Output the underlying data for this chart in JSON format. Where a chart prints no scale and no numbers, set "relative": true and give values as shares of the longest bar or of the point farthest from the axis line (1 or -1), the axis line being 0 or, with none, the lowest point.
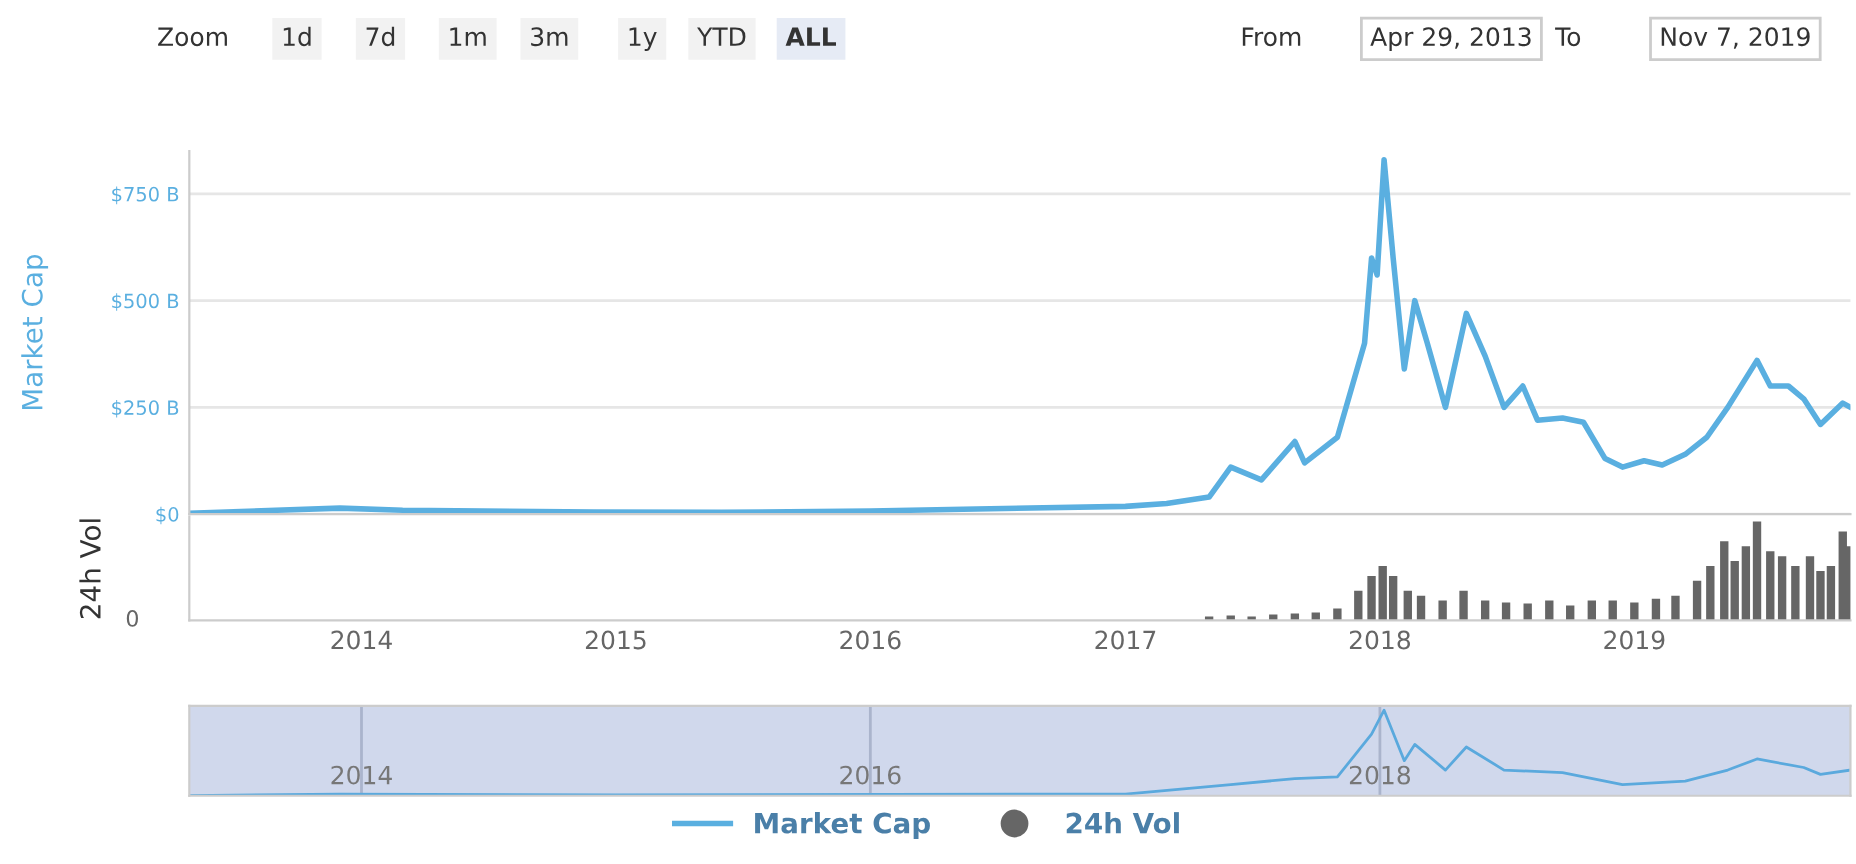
{
  "chart_data": [
    {
      "type": "line",
      "ylabel": "Market Cap",
      "annotations": [
        "Zoom",
        "1d",
        "7d",
        "1m",
        "3m",
        "1y",
        "YTD",
        "ALL",
        "From",
        "Apr 29, 2013",
        "To",
        "Nov 7, 2019"
      ],
      "x": [
        "2013-04-29",
        "2013-12-01",
        "2014-03-01",
        "2014-12-01",
        "2015-06-01",
        "2016-01-01",
        "2016-06-01",
        "2017-01-01",
        "2017-03-01",
        "2017-05-01",
        "2017-06-01",
        "2017-07-15",
        "2017-09-01",
        "2017-09-15",
        "2017-11-01",
        "2017-12-10",
        "2017-12-20",
        "2017-12-28",
        "2018-01-07",
        "2018-01-20",
        "2018-02-05",
        "2018-02-20",
        "2018-03-10",
        "2018-04-05",
        "2018-05-05",
        "2018-06-01",
        "2018-06-28",
        "2018-07-25",
        "2018-08-15",
        "2018-09-20",
        "2018-10-20",
        "2018-11-20",
        "2018-12-15",
        "2019-01-15",
        "2019-02-10",
        "2019-03-15",
        "2019-04-15",
        "2019-05-15",
        "2019-06-26",
        "2019-07-15",
        "2019-08-10",
        "2019-09-01",
        "2019-09-25",
        "2019-10-27",
        "2019-11-07"
      ],
      "series": [
        {
          "name": "Market Cap",
          "color": "#5aafe0",
          "values": [
            2,
            14,
            9,
            5,
            4,
            7,
            12,
            18,
            25,
            40,
            110,
            80,
            170,
            120,
            180,
            400,
            600,
            560,
            830,
            600,
            340,
            500,
            400,
            250,
            470,
            370,
            250,
            300,
            220,
            225,
            215,
            130,
            110,
            125,
            115,
            140,
            180,
            250,
            360,
            300,
            300,
            270,
            210,
            260,
            250
          ]
        }
      ],
      "xlim": [
        "2013-04-29",
        "2019-11-07"
      ],
      "ylim": [
        0,
        850
      ],
      "yticks": [
        {
          "value": 0,
          "label": "$0"
        },
        {
          "value": 250,
          "label": "$250 B"
        },
        {
          "value": 500,
          "label": "$500 B"
        },
        {
          "value": 750,
          "label": "$750 B"
        }
      ],
      "grid": "y",
      "legend": "bottom",
      "tick_labels": "y"
    },
    {
      "type": "bar",
      "relative": true,
      "ylabel": "24h Vol",
      "annotations": [
        "0"
      ],
      "x": [
        "2017-05-01",
        "2017-06-01",
        "2017-07-01",
        "2017-08-01",
        "2017-09-01",
        "2017-10-01",
        "2017-11-01",
        "2017-12-01",
        "2017-12-20",
        "2018-01-05",
        "2018-01-20",
        "2018-02-10",
        "2018-03-01",
        "2018-04-01",
        "2018-05-01",
        "2018-06-01",
        "2018-07-01",
        "2018-08-01",
        "2018-09-01",
        "2018-10-01",
        "2018-11-01",
        "2018-12-01",
        "2019-01-01",
        "2019-02-01",
        "2019-03-01",
        "2019-04-01",
        "2019-04-20",
        "2019-05-10",
        "2019-05-25",
        "2019-06-10",
        "2019-06-26",
        "2019-07-15",
        "2019-08-01",
        "2019-08-20",
        "2019-09-10",
        "2019-09-25",
        "2019-10-10",
        "2019-10-27",
        "2019-11-05"
      ],
      "series": [
        {
          "name": "24h Vol",
          "color": "#666666",
          "values": [
            0.04,
            0.05,
            0.04,
            0.06,
            0.07,
            0.08,
            0.12,
            0.3,
            0.45,
            0.55,
            0.45,
            0.3,
            0.25,
            0.2,
            0.3,
            0.2,
            0.18,
            0.17,
            0.2,
            0.15,
            0.2,
            0.2,
            0.18,
            0.22,
            0.25,
            0.4,
            0.55,
            0.8,
            0.6,
            0.75,
            1.0,
            0.7,
            0.65,
            0.55,
            0.65,
            0.5,
            0.55,
            0.9,
            0.75
          ]
        }
      ],
      "xlim": [
        "2013-04-29",
        "2019-11-07"
      ],
      "xticks": [
        {
          "value": "2014-01-01",
          "label": "2014"
        },
        {
          "value": "2015-01-01",
          "label": "2015"
        },
        {
          "value": "2016-01-01",
          "label": "2016"
        },
        {
          "value": "2017-01-01",
          "label": "2017"
        },
        {
          "value": "2018-01-01",
          "label": "2018"
        },
        {
          "value": "2019-01-01",
          "label": "2019"
        }
      ],
      "legend": "bottom",
      "tick_labels": "x"
    },
    {
      "type": "line",
      "relative": true,
      "x": [
        "2013-04-29",
        "2013-12-01",
        "2015-01-01",
        "2017-01-01",
        "2017-06-01",
        "2017-09-01",
        "2017-11-01",
        "2017-12-20",
        "2018-01-07",
        "2018-02-05",
        "2018-02-20",
        "2018-04-05",
        "2018-05-05",
        "2018-06-28",
        "2018-09-20",
        "2018-12-15",
        "2019-03-15",
        "2019-05-15",
        "2019-06-26",
        "2019-09-01",
        "2019-09-25",
        "2019-11-07"
      ],
      "series": [
        {
          "color": "#5aa9dd",
          "values": [
            0.0,
            0.02,
            0.01,
            0.02,
            0.13,
            0.2,
            0.22,
            0.72,
            1.0,
            0.41,
            0.6,
            0.3,
            0.57,
            0.3,
            0.27,
            0.13,
            0.17,
            0.3,
            0.43,
            0.33,
            0.25,
            0.3
          ]
        }
      ],
      "xlim": [
        "2013-04-29",
        "2019-11-07"
      ],
      "xticks": [
        {
          "value": "2014-01-01",
          "label": "2014"
        },
        {
          "value": "2016-01-01",
          "label": "2016"
        },
        {
          "value": "2018-01-01",
          "label": "2018"
        }
      ],
      "grid": "x",
      "tick_labels": "x"
    }
  ]
}
